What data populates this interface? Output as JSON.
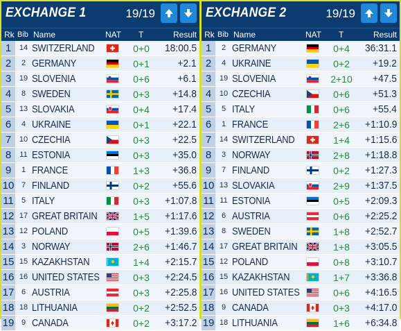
{
  "exchange1": {
    "title": "EXCHANGE 1",
    "lap": "19/19",
    "headers": {
      "rk": "Rk",
      "bib": "Bib",
      "name": "Name",
      "nat": "NAT",
      "t": "T",
      "result": "Result"
    },
    "rows": [
      {
        "rk": "1",
        "bib": "14",
        "name": "SWITZERLAND",
        "flag": "switzerland-flag",
        "t": "0+0",
        "result": "18:00.5"
      },
      {
        "rk": "2",
        "bib": "2",
        "name": "GERMANY",
        "flag": "germany-flag",
        "t": "0+1",
        "result": "+2.1"
      },
      {
        "rk": "3",
        "bib": "19",
        "name": "SLOVENIA",
        "flag": "slovenia-flag",
        "t": "0+6",
        "result": "+6.1"
      },
      {
        "rk": "4",
        "bib": "8",
        "name": "SWEDEN",
        "flag": "sweden-flag",
        "t": "0+3",
        "result": "+14.8"
      },
      {
        "rk": "5",
        "bib": "13",
        "name": "SLOVAKIA",
        "flag": "slovakia-flag",
        "t": "0+4",
        "result": "+17.4"
      },
      {
        "rk": "6",
        "bib": "4",
        "name": "UKRAINE",
        "flag": "ukraine-flag",
        "t": "0+1",
        "result": "+22.1"
      },
      {
        "rk": "7",
        "bib": "10",
        "name": "CZECHIA",
        "flag": "czechia-flag",
        "t": "0+3",
        "result": "+22.5"
      },
      {
        "rk": "8",
        "bib": "11",
        "name": "ESTONIA",
        "flag": "estonia-flag",
        "t": "0+3",
        "result": "+35.0"
      },
      {
        "rk": "9",
        "bib": "1",
        "name": "FRANCE",
        "flag": "france-flag",
        "t": "1+3",
        "result": "+36.8"
      },
      {
        "rk": "10",
        "bib": "7",
        "name": "FINLAND",
        "flag": "finland-flag",
        "t": "0+2",
        "result": "+55.6"
      },
      {
        "rk": "11",
        "bib": "5",
        "name": "ITALY",
        "flag": "italy-flag",
        "t": "0+3",
        "result": "+1:07.8"
      },
      {
        "rk": "12",
        "bib": "17",
        "name": "GREAT BRITAIN",
        "flag": "great-britain-flag",
        "t": "1+5",
        "result": "+1:17.6"
      },
      {
        "rk": "13",
        "bib": "12",
        "name": "POLAND",
        "flag": "poland-flag",
        "t": "0+5",
        "result": "+1:39.6"
      },
      {
        "rk": "14",
        "bib": "3",
        "name": "NORWAY",
        "flag": "norway-flag",
        "t": "2+6",
        "result": "+1:46.7"
      },
      {
        "rk": "15",
        "bib": "15",
        "name": "KAZAKHSTAN",
        "flag": "kazakhstan-flag",
        "t": "1+4",
        "result": "+2:15.7"
      },
      {
        "rk": "16",
        "bib": "16",
        "name": "UNITED STATES",
        "flag": "united-states-flag",
        "t": "0+3",
        "result": "+2:24.5"
      },
      {
        "rk": "17",
        "bib": "6",
        "name": "AUSTRIA",
        "flag": "austria-flag",
        "t": "0+3",
        "result": "+2:25.8"
      },
      {
        "rk": "18",
        "bib": "18",
        "name": "LITHUANIA",
        "flag": "lithuania-flag",
        "t": "0+2",
        "result": "+2:52.5"
      },
      {
        "rk": "19",
        "bib": "9",
        "name": "CANADA",
        "flag": "canada-flag",
        "t": "0+2",
        "result": "+3:17.2"
      }
    ]
  },
  "exchange2": {
    "title": "EXCHANGE 2",
    "lap": "19/19",
    "headers": {
      "rk": "Rk",
      "bib": "Bib",
      "name": "Name",
      "nat": "NAT",
      "t": "T",
      "result": "Result"
    },
    "rows": [
      {
        "rk": "1",
        "bib": "2",
        "name": "GERMANY",
        "flag": "germany-flag",
        "t": "0+4",
        "result": "36:31.1"
      },
      {
        "rk": "2",
        "bib": "4",
        "name": "UKRAINE",
        "flag": "ukraine-flag",
        "t": "0+2",
        "result": "+19.2"
      },
      {
        "rk": "3",
        "bib": "19",
        "name": "SLOVENIA",
        "flag": "slovenia-flag",
        "t": "2+10",
        "result": "+47.5"
      },
      {
        "rk": "4",
        "bib": "10",
        "name": "CZECHIA",
        "flag": "czechia-flag",
        "t": "0+6",
        "result": "+51.3"
      },
      {
        "rk": "5",
        "bib": "5",
        "name": "ITALY",
        "flag": "italy-flag",
        "t": "0+6",
        "result": "+55.4"
      },
      {
        "rk": "6",
        "bib": "1",
        "name": "FRANCE",
        "flag": "france-flag",
        "t": "2+6",
        "result": "+1:10.9"
      },
      {
        "rk": "7",
        "bib": "14",
        "name": "SWITZERLAND",
        "flag": "switzerland-flag",
        "t": "1+4",
        "result": "+1:15.6"
      },
      {
        "rk": "8",
        "bib": "3",
        "name": "NORWAY",
        "flag": "norway-flag",
        "t": "2+8",
        "result": "+1:18.8"
      },
      {
        "rk": "9",
        "bib": "7",
        "name": "FINLAND",
        "flag": "finland-flag",
        "t": "0+2",
        "result": "+1:27.3"
      },
      {
        "rk": "10",
        "bib": "13",
        "name": "SLOVAKIA",
        "flag": "slovakia-flag",
        "t": "2+9",
        "result": "+1:37.5"
      },
      {
        "rk": "11",
        "bib": "11",
        "name": "ESTONIA",
        "flag": "estonia-flag",
        "t": "0+5",
        "result": "+2:09.3"
      },
      {
        "rk": "12",
        "bib": "6",
        "name": "AUSTRIA",
        "flag": "austria-flag",
        "t": "0+6",
        "result": "+2:25.2"
      },
      {
        "rk": "13",
        "bib": "8",
        "name": "SWEDEN",
        "flag": "sweden-flag",
        "t": "1+8",
        "result": "+2:52.7"
      },
      {
        "rk": "14",
        "bib": "17",
        "name": "GREAT BRITAIN",
        "flag": "great-britain-flag",
        "t": "1+8",
        "result": "+3:05.5"
      },
      {
        "rk": "15",
        "bib": "12",
        "name": "POLAND",
        "flag": "poland-flag",
        "t": "0+8",
        "result": "+3:10.7"
      },
      {
        "rk": "16",
        "bib": "15",
        "name": "KAZAKHSTAN",
        "flag": "kazakhstan-flag",
        "t": "1+7",
        "result": "+3:36.8"
      },
      {
        "rk": "17",
        "bib": "16",
        "name": "UNITED STATES",
        "flag": "united-states-flag",
        "t": "0+6",
        "result": "+4:16.5"
      },
      {
        "rk": "18",
        "bib": "9",
        "name": "CANADA",
        "flag": "canada-flag",
        "t": "0+3",
        "result": "+4:17.0"
      },
      {
        "rk": "19",
        "bib": "18",
        "name": "LITHUANIA",
        "flag": "lithuania-flag",
        "t": "1+6",
        "result": "+6:34.8"
      }
    ]
  },
  "colors": {
    "header_bg": "#0b3b6f",
    "accent_border": "#d9e021",
    "arrow_button": "#1f88d8",
    "shooting_text": "#2c8a3a",
    "rank_cell": "#bdd0e6"
  }
}
